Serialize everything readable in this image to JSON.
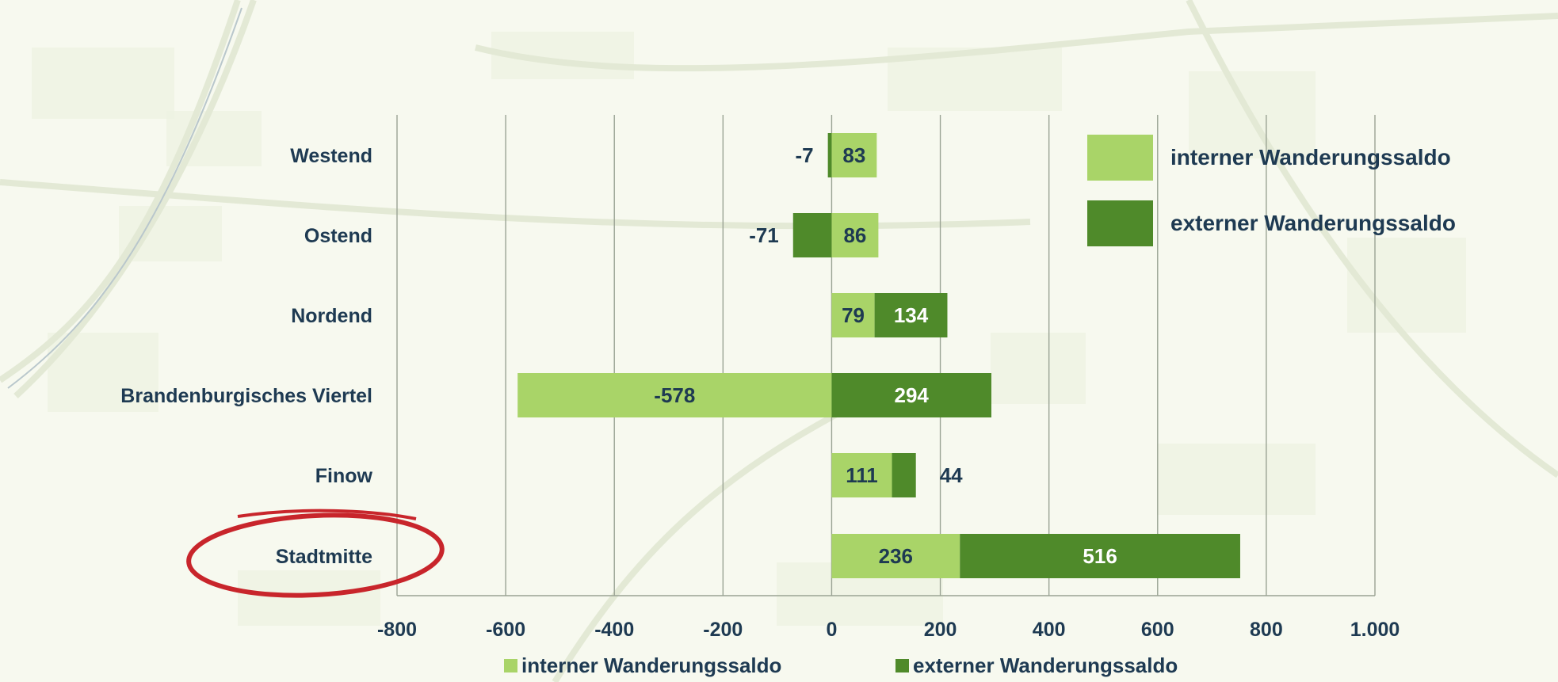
{
  "chart_data": {
    "type": "bar",
    "orientation": "horizontal",
    "stacked": true,
    "categories": [
      "Westend",
      "Ostend",
      "Nordend",
      "Brandenburgisches Viertel",
      "Finow",
      "Stadtmitte"
    ],
    "series": [
      {
        "name": "interner Wanderungssaldo",
        "color": "#a9d468",
        "values": [
          83,
          86,
          79,
          -578,
          111,
          236
        ]
      },
      {
        "name": "externer Wanderungssaldo",
        "color": "#4f8a2a",
        "values": [
          -7,
          -71,
          134,
          294,
          44,
          516
        ]
      }
    ],
    "xlim": [
      -800,
      1000
    ],
    "xticks": [
      -800,
      -600,
      -400,
      -200,
      0,
      200,
      400,
      600,
      800,
      1000
    ],
    "xtick_labels": [
      "-800",
      "-600",
      "-400",
      "-200",
      "0",
      "200",
      "400",
      "600",
      "800",
      "1.000"
    ],
    "grid": true,
    "legend": "top-right",
    "highlighted_category": "Stadtmitte",
    "title": "",
    "xlabel": "",
    "ylabel": ""
  }
}
